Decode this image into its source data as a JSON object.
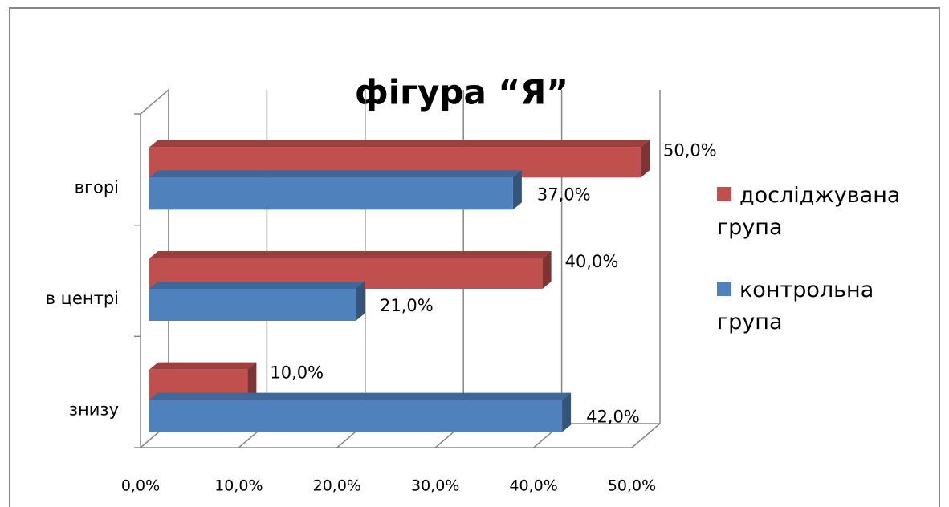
{
  "chart_data": {
    "type": "bar3d_horizontal",
    "title": "фігура “Я”",
    "categories": [
      "вгорі",
      "в центрі",
      "знизу"
    ],
    "series": [
      {
        "name": "досліджувана група",
        "color": "#c0504d",
        "values": [
          50,
          40,
          10
        ],
        "value_labels": [
          "50,0%",
          "40,0%",
          "10,0%"
        ]
      },
      {
        "name": "контрольна група",
        "color": "#4f81bd",
        "values": [
          37,
          21,
          42
        ],
        "value_labels": [
          "37,0%",
          "21,0%",
          "42,0%"
        ]
      }
    ],
    "xlim": [
      0,
      50
    ],
    "xticks": [
      {
        "value": 0,
        "label": "0,0%"
      },
      {
        "value": 10,
        "label": "10,0%"
      },
      {
        "value": 20,
        "label": "20,0%"
      },
      {
        "value": 30,
        "label": "30,0%"
      },
      {
        "value": 40,
        "label": "40,0%"
      },
      {
        "value": 50,
        "label": "50,0%"
      }
    ],
    "grid": true,
    "legend": "right"
  }
}
